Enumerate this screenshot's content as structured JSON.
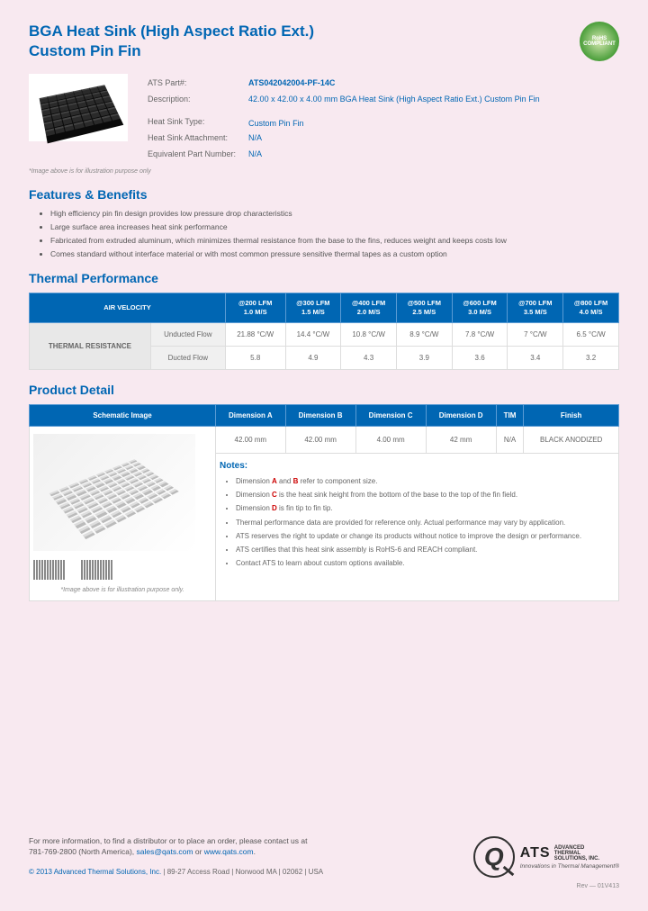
{
  "title_line1": "BGA Heat Sink (High Aspect Ratio Ext.)",
  "title_line2": "Custom Pin Fin",
  "rohs": "RoHS COMPLIANT",
  "spec": {
    "part_label": "ATS Part#:",
    "part_value": "ATS042042004-PF-14C",
    "desc_label": "Description:",
    "desc_value": "42.00 x 42.00 x 4.00 mm  BGA Heat Sink (High Aspect Ratio Ext.) Custom Pin Fin",
    "type_label": "Heat Sink Type:",
    "type_value": "Custom Pin Fin",
    "attach_label": "Heat Sink Attachment:",
    "attach_value": "N/A",
    "equiv_label": "Equivalent Part Number:",
    "equiv_value": "N/A"
  },
  "img_disclaimer": "*Image above is for illustration purpose only",
  "features_h": "Features & Benefits",
  "features": [
    "High efficiency pin fin design provides low pressure drop characteristics",
    "Large surface area increases heat sink performance",
    "Fabricated from extruded aluminum, which minimizes thermal resistance from the base to the fins, reduces weight and keeps costs low",
    "Comes standard without interface material or with most common pressure sensitive thermal tapes as a custom option"
  ],
  "thermal_h": "Thermal Performance",
  "thermal": {
    "air_velocity": "AIR VELOCITY",
    "cols": [
      {
        "l1": "@200 LFM",
        "l2": "1.0 M/S"
      },
      {
        "l1": "@300 LFM",
        "l2": "1.5 M/S"
      },
      {
        "l1": "@400 LFM",
        "l2": "2.0 M/S"
      },
      {
        "l1": "@500 LFM",
        "l2": "2.5 M/S"
      },
      {
        "l1": "@600 LFM",
        "l2": "3.0 M/S"
      },
      {
        "l1": "@700 LFM",
        "l2": "3.5 M/S"
      },
      {
        "l1": "@800 LFM",
        "l2": "4.0 M/S"
      }
    ],
    "row_head": "THERMAL RESISTANCE",
    "unducted_label": "Unducted Flow",
    "unducted": [
      "21.88 °C/W",
      "14.4 °C/W",
      "10.8 °C/W",
      "8.9 °C/W",
      "7.8 °C/W",
      "7 °C/W",
      "6.5 °C/W"
    ],
    "ducted_label": "Ducted Flow",
    "ducted": [
      "5.8",
      "4.9",
      "4.3",
      "3.9",
      "3.6",
      "3.4",
      "3.2"
    ]
  },
  "detail_h": "Product Detail",
  "detail": {
    "schematic_h": "Schematic Image",
    "cols": [
      "Dimension A",
      "Dimension B",
      "Dimension C",
      "Dimension D",
      "TIM",
      "Finish"
    ],
    "vals": [
      "42.00 mm",
      "42.00 mm",
      "4.00 mm",
      "42 mm",
      "N/A",
      "BLACK ANODIZED"
    ],
    "notes_h": "Notes:",
    "notes": [
      "Dimension <span class='red'>A</span> and <span class='red'>B</span> refer to component size.",
      "Dimension <span class='red'>C</span> is the heat sink height from the bottom of the base to the top of the fin field.",
      "Dimension <span class='red'>D</span> is fin tip to fin tip.",
      "Thermal performance data are provided for reference only. Actual performance may vary by application.",
      "ATS reserves the right to update or change its products without notice to improve the design or performance.",
      "ATS certifies that this heat sink assembly is RoHS-6 and REACH compliant.",
      "Contact ATS to learn about custom options available."
    ],
    "schematic_disclaimer": "*Image above is for illustration purpose only."
  },
  "footer": {
    "contact1": "For more information, to find a distributor or to place an order, please contact us at",
    "contact2_a": "781-769-2800 (North America), ",
    "email": "sales@qats.com",
    "contact2_b": " or ",
    "web": "www.qats.com",
    "contact2_c": ".",
    "copy_a": "© 2013 Advanced Thermal Solutions, Inc.",
    "copy_b": " | 89-27 Access Road | Norwood MA | 02062 | USA",
    "logo_big": "ATS",
    "logo_sub1": "ADVANCED",
    "logo_sub2": "THERMAL",
    "logo_sub3": "SOLUTIONS, INC.",
    "logo_tag": "Innovations in Thermal Management®",
    "rev": "Rev — 01V413"
  }
}
